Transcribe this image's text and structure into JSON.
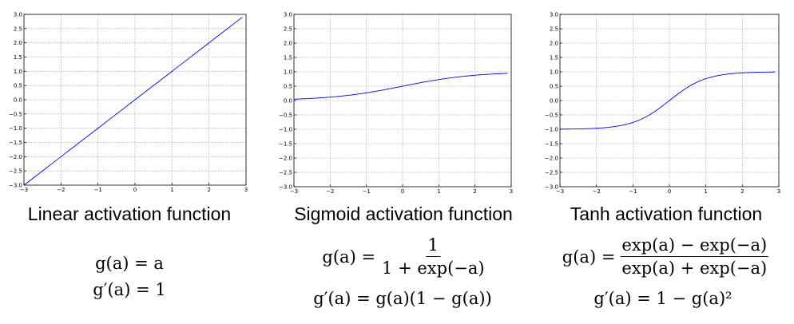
{
  "chart_data": [
    {
      "type": "line",
      "function": "linear",
      "title": "Linear activation function",
      "formula_lines": [
        "g(a) = a",
        "g′(a) = 1"
      ],
      "xlim": [
        -3,
        3
      ],
      "ylim": [
        -3.0,
        3.0
      ],
      "xticks": [
        "−3",
        "−2",
        "−1",
        "0",
        "1",
        "2",
        "3"
      ],
      "yticks": [
        "3.0",
        "2.5",
        "2.0",
        "1.5",
        "1.0",
        "0.5",
        "0.0",
        "−0.5",
        "−1.0",
        "−1.5",
        "−2.0",
        "−2.5",
        "−3.0"
      ],
      "grid": true,
      "line_color": "#0000ff",
      "x": [
        -3,
        -2,
        -1,
        0,
        1,
        2,
        2.9
      ],
      "y": [
        -3,
        -2,
        -1,
        0,
        1,
        2,
        2.9
      ]
    },
    {
      "type": "line",
      "function": "sigmoid",
      "title": "Sigmoid activation function",
      "formula_main": {
        "lhs": "g(a) =",
        "num": "1",
        "den": "1 + exp(−a)"
      },
      "formula_deriv": "g′(a) = g(a)(1 − g(a))",
      "xlim": [
        -3,
        3
      ],
      "ylim": [
        -3.0,
        3.0
      ],
      "xticks": [
        "−3",
        "−2",
        "−1",
        "0",
        "1",
        "2",
        "3"
      ],
      "yticks": [
        "3.0",
        "2.5",
        "2.0",
        "1.5",
        "1.0",
        "0.5",
        "0.0",
        "−0.5",
        "−1.0",
        "−1.5",
        "−2.0",
        "−2.5",
        "−3.0"
      ],
      "grid": true,
      "line_color": "#0000ff",
      "x": [
        -3,
        -2,
        -1,
        0,
        1,
        2,
        2.9
      ],
      "y": [
        0.05,
        0.12,
        0.27,
        0.5,
        0.73,
        0.88,
        0.95
      ]
    },
    {
      "type": "line",
      "function": "tanh",
      "title": "Tanh activation function",
      "formula_main": {
        "lhs": "g(a) =",
        "num": "exp(a) − exp(−a)",
        "den": "exp(a) + exp(−a)"
      },
      "formula_deriv": "g′(a) = 1 − g(a)²",
      "xlim": [
        -3,
        3
      ],
      "ylim": [
        -3.0,
        3.0
      ],
      "xticks": [
        "−3",
        "−2",
        "−1",
        "0",
        "1",
        "2",
        "3"
      ],
      "yticks": [
        "3.0",
        "2.5",
        "2.0",
        "1.5",
        "1.0",
        "0.5",
        "0.0",
        "−0.5",
        "−1.0",
        "−1.5",
        "−2.0",
        "−2.5",
        "−3.0"
      ],
      "grid": true,
      "line_color": "#0000ff",
      "x": [
        -3,
        -2,
        -1,
        0,
        1,
        2,
        2.9
      ],
      "y": [
        -0.99,
        -0.96,
        -0.76,
        0.0,
        0.76,
        0.96,
        0.99
      ]
    }
  ]
}
